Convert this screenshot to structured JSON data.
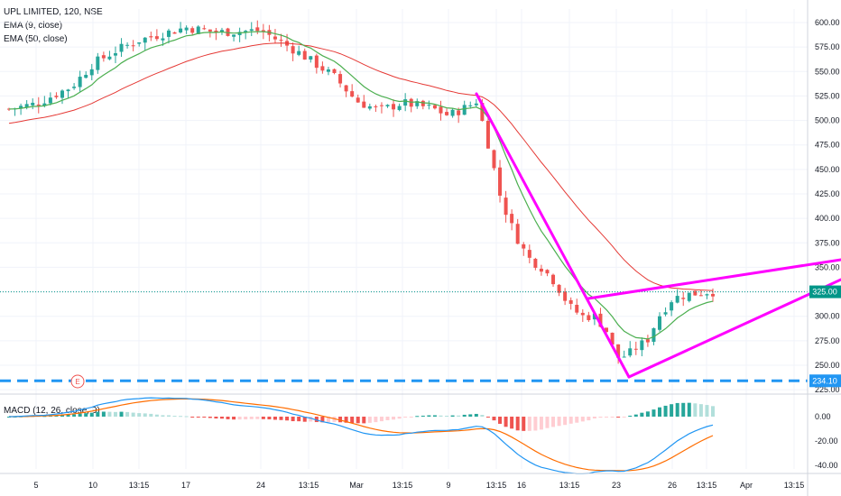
{
  "legend": {
    "title": "UPL LIMITED, 120, NSE",
    "ema9": "EMA (9, close)",
    "ema50": "EMA (50, close)",
    "macd": "MACD (12, 26, close, 9)"
  },
  "event_marker": "E",
  "colors": {
    "up": "#26a69a",
    "down": "#ef5350",
    "ema9": "#4caf50",
    "ema50": "#e53935",
    "pattern": "#ff00ff",
    "support": "#2196f3",
    "price_line": "#009688",
    "macd_line": "#2196f3",
    "signal_line": "#ff6d00",
    "hist_up_strong": "#26a69a",
    "hist_up_weak": "#b2dfdb",
    "hist_down_strong": "#ef5350",
    "hist_down_weak": "#ffcdd2"
  },
  "chart_data": [
    {
      "type": "candlestick",
      "title": "UPL LIMITED, 120, NSE",
      "y_ticks": [
        "600.00",
        "575.00",
        "550.00",
        "525.00",
        "500.00",
        "475.00",
        "450.00",
        "425.00",
        "400.00",
        "375.00",
        "350.00",
        "325.00",
        "300.00",
        "275.00",
        "250.00",
        "225.00"
      ],
      "ylim": [
        222,
        612
      ],
      "x_ticks": [
        "5",
        "10",
        "13:15",
        "17",
        "24",
        "13:15",
        "Mar",
        "13:15",
        "9",
        "13:15",
        "16",
        "13:15",
        "23",
        "26",
        "13:15",
        "Apr",
        "13:15"
      ],
      "last_price_label": "325.00",
      "support_label": "234.10",
      "last_price": 325,
      "support_level": 234.1,
      "series": [
        {
          "name": "EMA (9, close)"
        },
        {
          "name": "EMA (50, close)"
        }
      ]
    },
    {
      "type": "macd",
      "title": "MACD (12, 26, close, 9)",
      "y_ticks": [
        "0.00",
        "-20.00",
        "-40.00"
      ],
      "ylim": [
        -50,
        10
      ]
    }
  ]
}
